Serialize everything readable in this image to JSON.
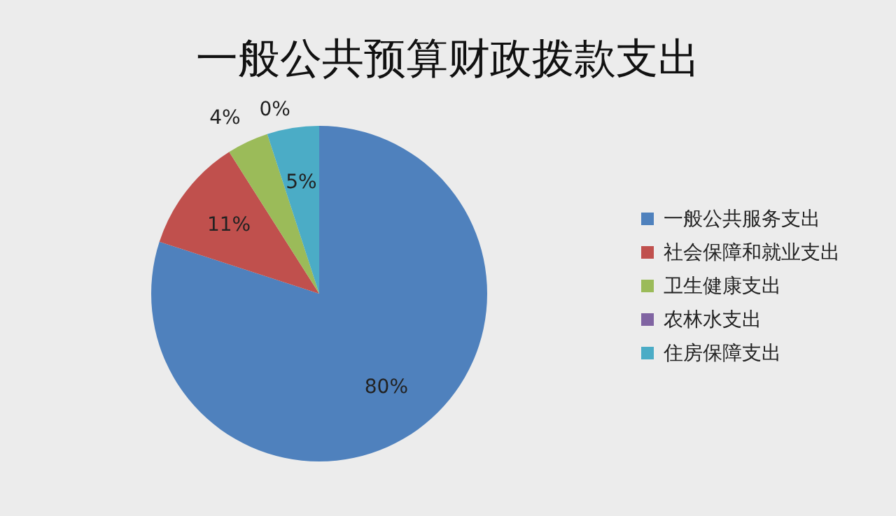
{
  "chart_data": {
    "type": "pie",
    "title": "一般公共预算财政拨款支出",
    "categories": [
      "一般公共服务支出",
      "社会保障和就业支出",
      "卫生健康支出",
      "农林水支出",
      "住房保障支出"
    ],
    "values": [
      80,
      11,
      4,
      0,
      5
    ],
    "colors": [
      "#4f81bd",
      "#c0504d",
      "#9bbb59",
      "#8064a2",
      "#4bacc6"
    ],
    "value_labels": [
      "80%",
      "11%",
      "4%",
      "0%",
      "5%"
    ],
    "legend": "right"
  }
}
